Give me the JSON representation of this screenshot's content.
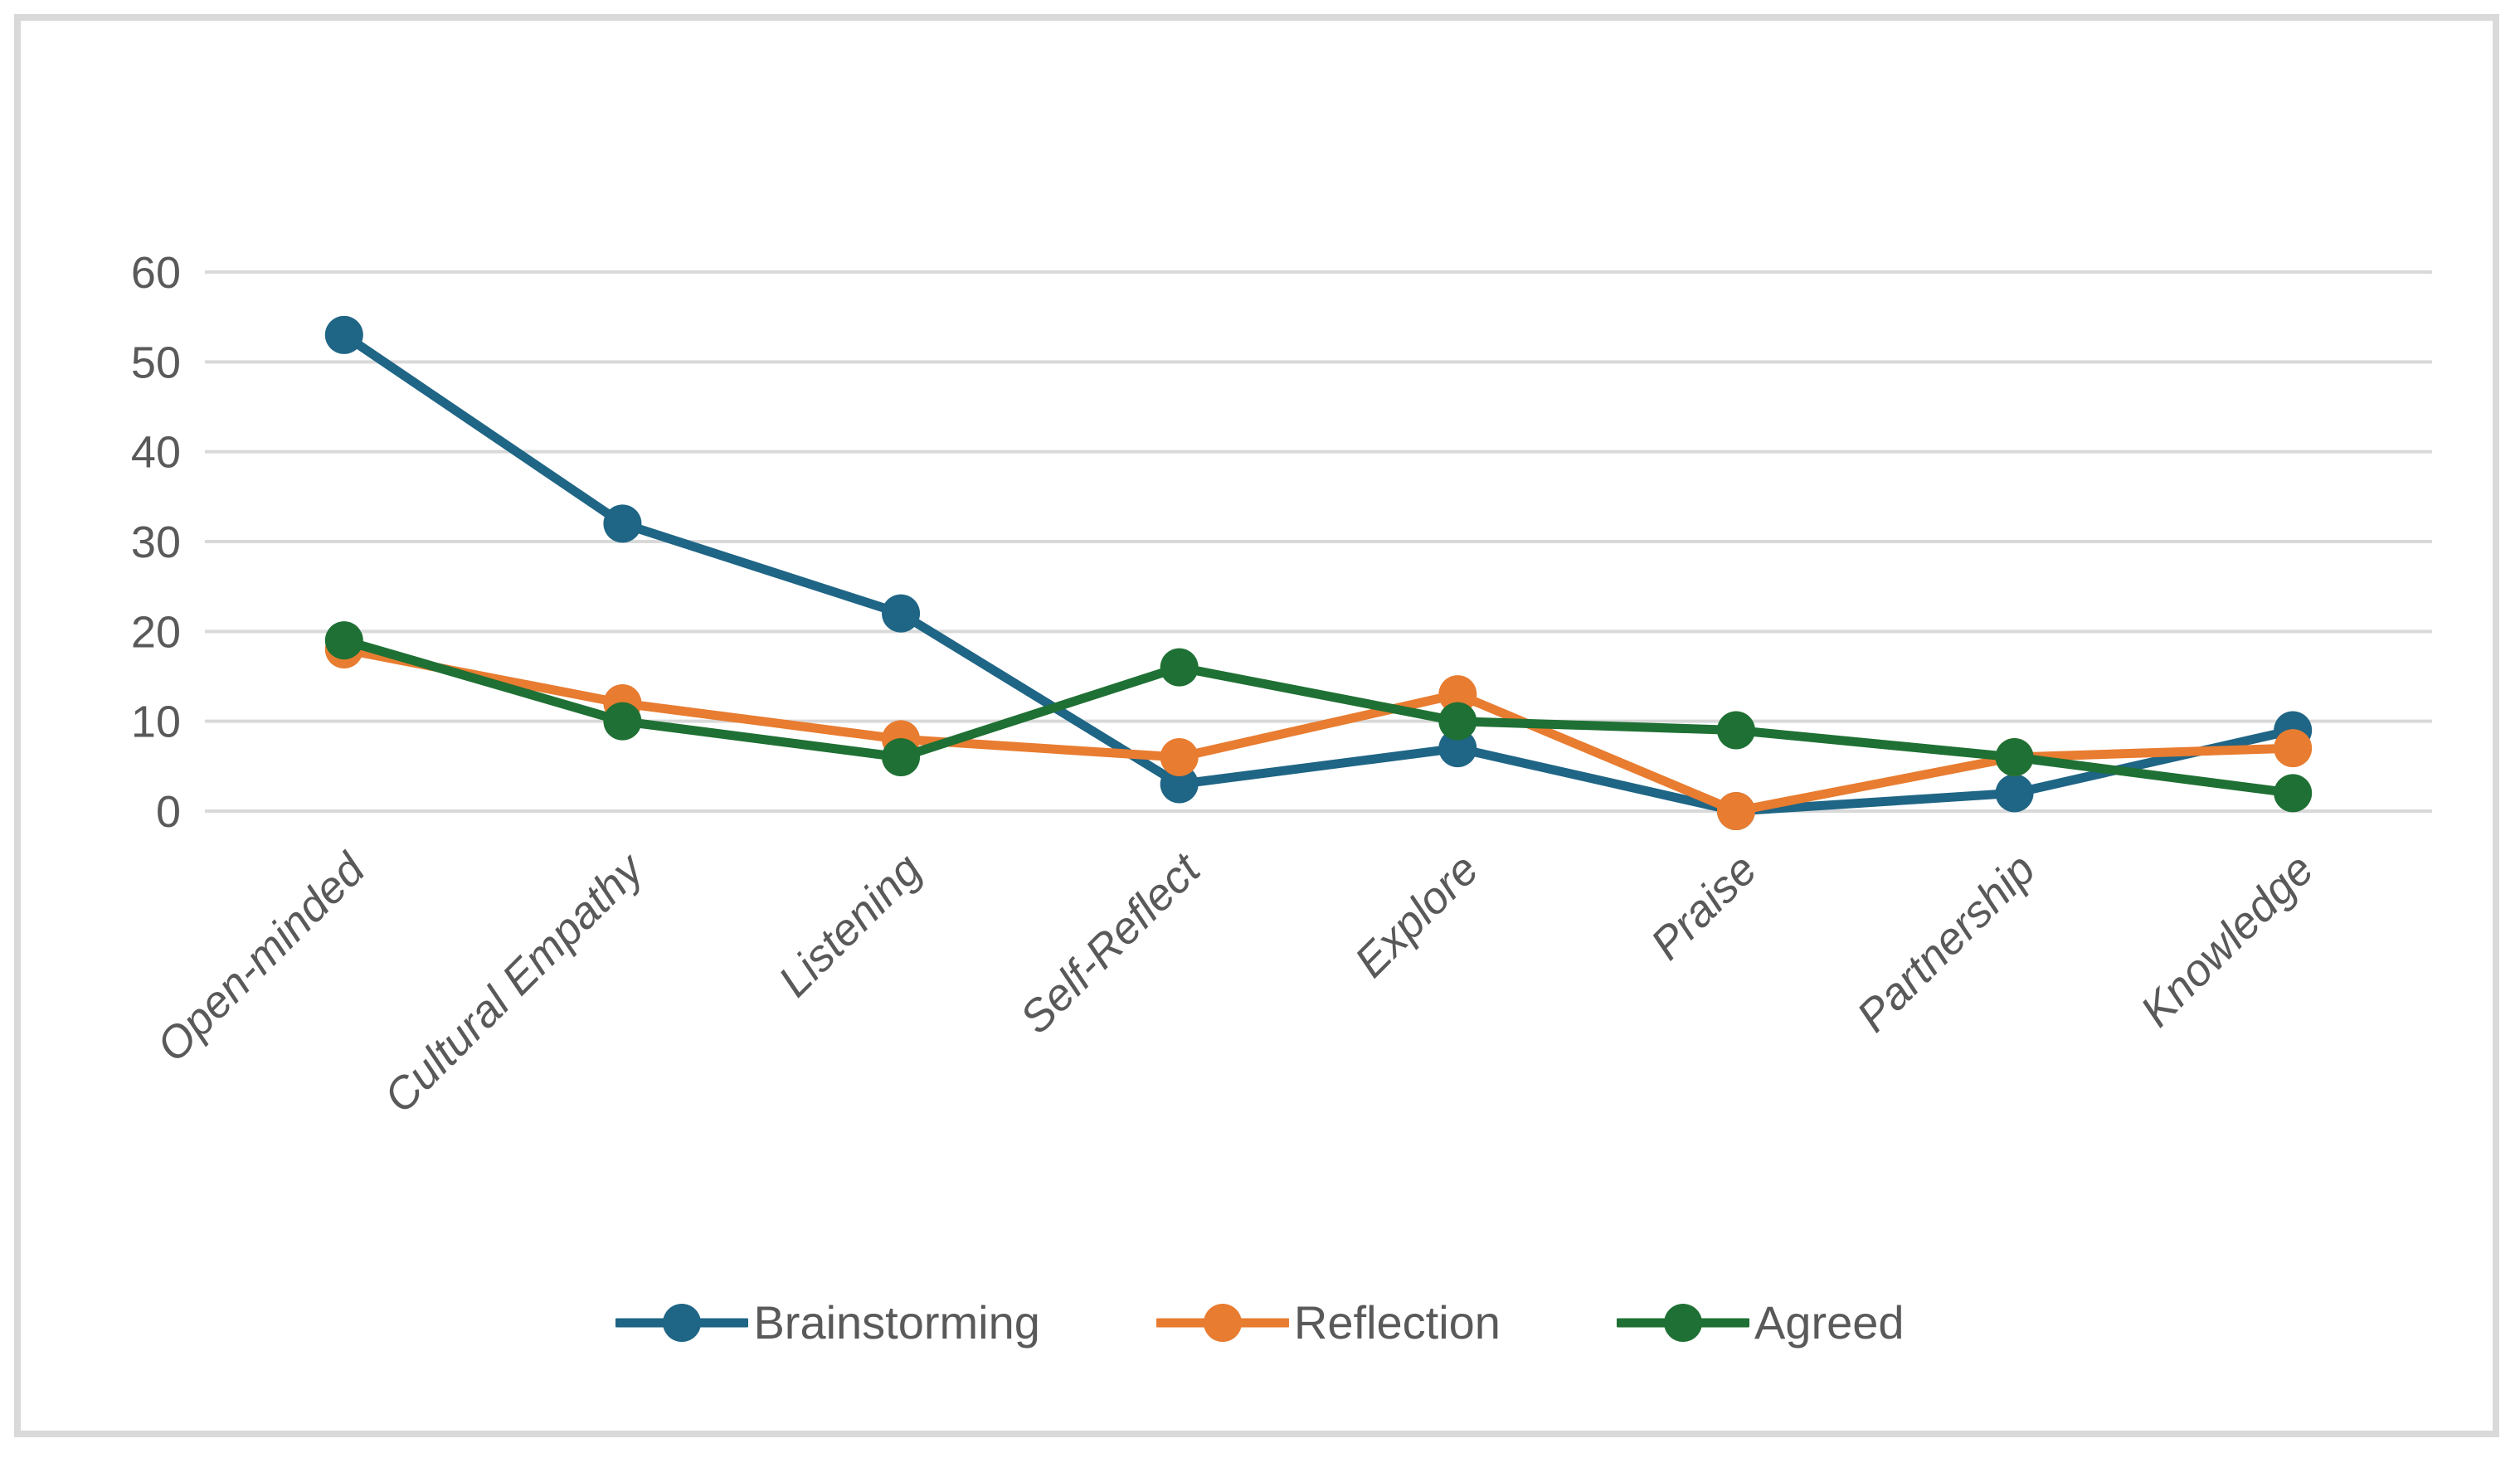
{
  "chart_data": {
    "type": "line",
    "title": "",
    "xlabel": "",
    "ylabel": "",
    "categories": [
      "Open-minded",
      "Cultural Empathy",
      "Listening",
      "Self-Reflect",
      "Explore",
      "Praise",
      "Partnership",
      "Knowledge"
    ],
    "series": [
      {
        "name": "Brainstorming",
        "color": "#1F6585",
        "values": [
          53,
          32,
          22,
          3,
          7,
          0,
          2,
          9
        ]
      },
      {
        "name": "Reflection",
        "color": "#E87C30",
        "values": [
          18,
          12,
          8,
          6,
          13,
          0,
          6,
          7
        ]
      },
      {
        "name": "Agreed",
        "color": "#1F7034",
        "values": [
          19,
          10,
          6,
          16,
          10,
          9,
          6,
          2
        ]
      }
    ],
    "ylim": [
      0,
      60
    ],
    "ytick_interval": 10,
    "ytick_labels": [
      "0",
      "10",
      "20",
      "30",
      "40",
      "50",
      "60"
    ],
    "grid": "horizontal-only",
    "legend_position": "bottom",
    "marker_style": "circle",
    "category_label_style": "italic, rotated 45deg",
    "colors": {
      "gridline": "#D9D9D9",
      "axis_text": "#595959",
      "frame_border": "#D9D9D9",
      "background": "#FFFFFF"
    }
  }
}
